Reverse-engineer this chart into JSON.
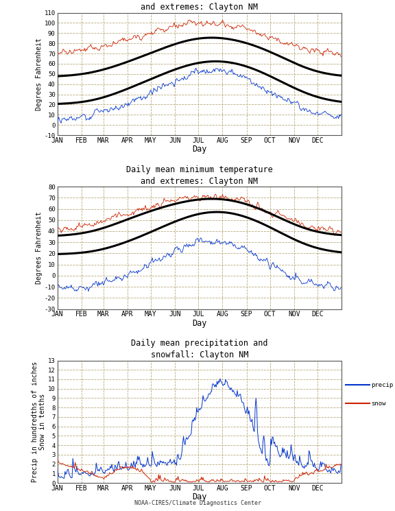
{
  "title1": "Daily mean maximum temperature\nand extremes: Clayton NM",
  "title2": "Daily mean minimum temperature\nand extremes: Clayton NM",
  "title3": "Daily mean precipitation and\nsnowfall: Clayton NM",
  "ylabel1": "Degrees Fahrenheit",
  "ylabel2": "Degrees Fahrenheit",
  "ylabel3": "Precip in hundredths of inches\nSnow in tenths",
  "xlabel": "Day",
  "months": [
    "JAN",
    "FEB",
    "MAR",
    "APR",
    "MAY",
    "JUN",
    "JUL",
    "AUG",
    "SEP",
    "OCT",
    "NOV",
    "DEC"
  ],
  "max_mean_upper": [
    47,
    50,
    57,
    66,
    75,
    85,
    88,
    85,
    78,
    67,
    54,
    46
  ],
  "max_mean_lower": [
    20,
    22,
    30,
    40,
    50,
    60,
    65,
    63,
    55,
    42,
    30,
    20
  ],
  "max_extreme_high": [
    70,
    73,
    80,
    88,
    94,
    100,
    101,
    98,
    92,
    82,
    73,
    68
  ],
  "max_extreme_low": [
    5,
    8,
    16,
    26,
    36,
    50,
    58,
    55,
    40,
    26,
    12,
    4
  ],
  "min_mean_upper": [
    35,
    38,
    46,
    55,
    62,
    68,
    71,
    69,
    62,
    51,
    40,
    35
  ],
  "min_mean_lower": [
    19,
    20,
    26,
    34,
    44,
    54,
    60,
    58,
    50,
    38,
    26,
    19
  ],
  "min_extreme_high": [
    42,
    45,
    52,
    60,
    65,
    70,
    72,
    70,
    63,
    52,
    43,
    40
  ],
  "min_extreme_low": [
    -12,
    -10,
    -5,
    5,
    16,
    26,
    36,
    32,
    18,
    2,
    -8,
    -14
  ],
  "footer": "NOAA-CIRES/Climate Diagnostics Center",
  "background": "#ffffff",
  "grid_color": "#b8a878",
  "line_black": "#000000",
  "line_red": "#cc2200",
  "line_blue": "#0033cc"
}
